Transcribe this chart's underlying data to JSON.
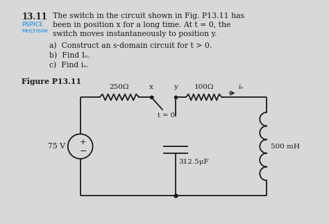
{
  "title_number": "13.11",
  "title_text_line1": "The switch in the circuit shown in Fig. P13.11 has",
  "title_text_line2": "been in position x for a long time. At t = 0, the",
  "title_text_line3": "switch moves instantaneously to position y.",
  "label_pspice": "PSPICE",
  "label_multisim": "MULTISIM",
  "part_a": "a)  Construct an s-domain circuit for t > 0.",
  "part_b": "b)  Find Iₒ.",
  "part_c": "c)  Find iₒ.",
  "figure_label": "Figure P13.11",
  "bg_color": "#d8d8d8",
  "text_color": "#1a1a1a",
  "pspice_color": "#4fa3e0",
  "multisim_color": "#4fa3e0",
  "circuit_line_color": "#1a1a1a",
  "resistor_250": "250Ω",
  "resistor_100": "100Ω",
  "capacitor_val": "312.5μF",
  "inductor_val": "500 mH",
  "voltage_val": "75 V",
  "switch_x": "x",
  "switch_y": "y",
  "switch_time": "t = 0",
  "current_label": "iₒ"
}
